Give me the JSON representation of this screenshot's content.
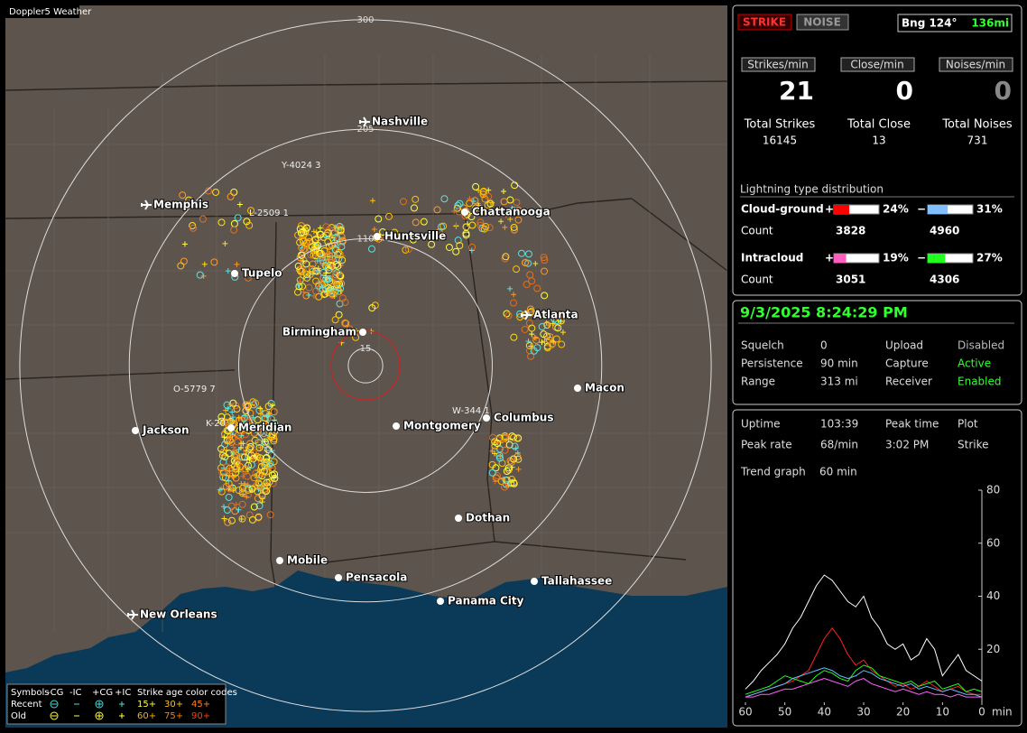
{
  "map": {
    "title": "Doppler5 Weather",
    "range_rings": [
      15,
      110,
      205,
      300
    ],
    "cities": [
      "Nashville",
      "Memphis",
      "Chattanooga",
      "Huntsville",
      "Tupelo",
      "Atlanta",
      "Birmingham",
      "Macon",
      "Jackson",
      "Meridian",
      "Montgomery",
      "Columbus",
      "Dothan",
      "Mobile",
      "Pensacola",
      "Tallahassee",
      "Panama City",
      "New Orleans"
    ],
    "towers": [
      "Y-4024 3",
      "L-2509 1",
      "O-5779 7",
      "K-20",
      "W-344 1"
    ],
    "legend": {
      "symbols_label": "Symbols",
      "symbol_names": [
        "-CG",
        "-IC",
        "+CG",
        "+IC"
      ],
      "age_title": "Strike age color codes",
      "rows": [
        "Recent",
        "Old"
      ],
      "recent_ages": [
        "15+",
        "30+",
        "45+"
      ],
      "old_ages": [
        "60+",
        "75+",
        "90+"
      ]
    }
  },
  "status": {
    "strike_button": "STRIKE",
    "noise_button": "NOISE",
    "bearing": "Bng 124°",
    "distance": "136mi",
    "rate_labels": [
      "Strikes/min",
      "Close/min",
      "Noises/min"
    ],
    "rates": [
      21,
      0,
      0
    ],
    "total_labels": [
      "Total Strikes",
      "Total Close",
      "Total Noises"
    ],
    "totals": [
      16145,
      13,
      731
    ]
  },
  "distribution": {
    "title": "Lightning type distribution",
    "count_label": "Count",
    "pos_sign": "+",
    "neg_sign": "−",
    "rows": [
      {
        "label": "Cloud-ground",
        "pos": {
          "value": 24,
          "label": "24%"
        },
        "pos_color": "#ff0000",
        "neg": {
          "value": 31,
          "label": "31%"
        },
        "neg_color": "#80c0ff",
        "pos_count": 3828,
        "neg_count": 4960
      },
      {
        "label": "Intracloud",
        "pos": {
          "value": 19,
          "label": "19%"
        },
        "pos_color": "#ff60c0",
        "neg": {
          "value": 27,
          "label": "27%"
        },
        "neg_color": "#20ff20",
        "pos_count": 3051,
        "neg_count": 4306
      }
    ]
  },
  "settings": {
    "datetime": "9/3/2025 8:24:29 PM",
    "rows": [
      [
        "Squelch",
        "0",
        "Upload",
        "Disabled"
      ],
      [
        "Persistence",
        "90 min",
        "Capture",
        "Active"
      ],
      [
        "Range",
        "313 mi",
        "Receiver",
        "Enabled"
      ]
    ]
  },
  "stats": {
    "rows": [
      [
        "Uptime",
        "103:39",
        "Peak time",
        "Plot"
      ],
      [
        "Peak rate",
        "68/min",
        "3:02 PM",
        "Strike"
      ]
    ],
    "trend_label": "Trend graph",
    "trend_value": "60 min"
  },
  "trend_graph": {
    "type": "line",
    "x": [
      60,
      58,
      56,
      54,
      52,
      50,
      48,
      46,
      44,
      42,
      40,
      38,
      36,
      34,
      32,
      30,
      28,
      26,
      24,
      22,
      20,
      18,
      16,
      14,
      12,
      10,
      8,
      6,
      4,
      2,
      0
    ],
    "xlim": [
      60,
      0
    ],
    "xticks": [
      60,
      50,
      40,
      30,
      20,
      10,
      0
    ],
    "xlabel": "min",
    "ylim": [
      0,
      80
    ],
    "yticks": [
      20,
      40,
      60,
      80
    ],
    "series": [
      {
        "color": "#ffffff",
        "values": [
          5,
          8,
          12,
          15,
          18,
          22,
          28,
          32,
          38,
          44,
          48,
          46,
          42,
          38,
          36,
          40,
          32,
          28,
          22,
          20,
          22,
          16,
          18,
          24,
          20,
          10,
          14,
          18,
          12,
          10,
          8
        ]
      },
      {
        "color": "#ff2020",
        "values": [
          2,
          3,
          4,
          5,
          6,
          7,
          8,
          10,
          12,
          18,
          24,
          28,
          24,
          18,
          14,
          16,
          12,
          10,
          8,
          6,
          7,
          5,
          6,
          8,
          6,
          4,
          5,
          6,
          4,
          3,
          3
        ]
      },
      {
        "color": "#20ff20",
        "values": [
          3,
          4,
          5,
          6,
          8,
          10,
          9,
          8,
          7,
          10,
          12,
          11,
          9,
          8,
          12,
          14,
          13,
          10,
          9,
          8,
          7,
          8,
          6,
          7,
          8,
          5,
          6,
          7,
          4,
          5,
          4
        ]
      },
      {
        "color": "#60c0ff",
        "values": [
          2,
          3,
          4,
          5,
          6,
          7,
          9,
          10,
          11,
          12,
          13,
          12,
          10,
          9,
          10,
          12,
          11,
          9,
          8,
          7,
          6,
          7,
          5,
          6,
          5,
          4,
          5,
          4,
          3,
          3,
          2
        ]
      },
      {
        "color": "#ff60ff",
        "values": [
          2,
          2,
          3,
          3,
          4,
          5,
          5,
          6,
          7,
          8,
          9,
          8,
          7,
          6,
          8,
          9,
          7,
          6,
          5,
          4,
          5,
          4,
          3,
          4,
          3,
          3,
          2,
          3,
          2,
          2,
          2
        ]
      }
    ]
  }
}
